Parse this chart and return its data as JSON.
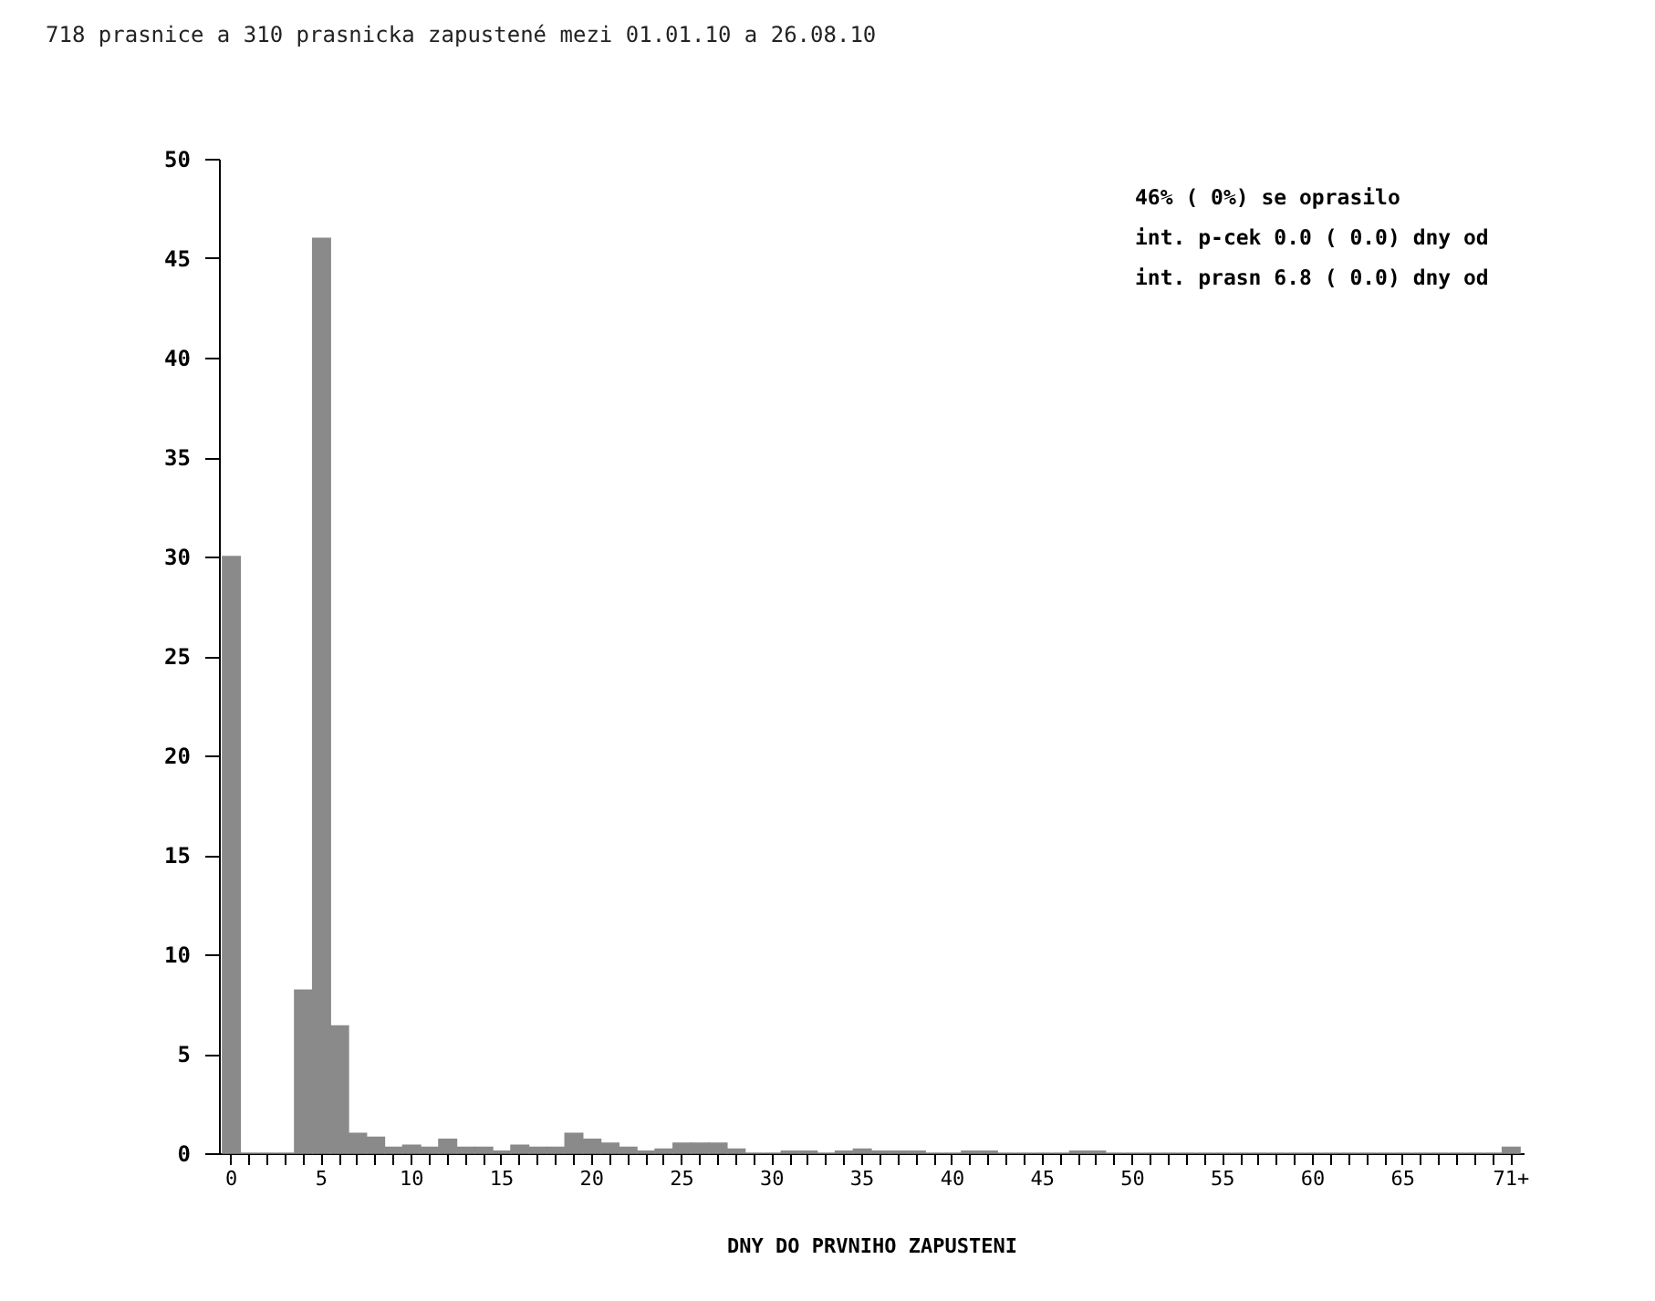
{
  "chart_data": {
    "type": "bar",
    "title": "718 prasnice a 310 prasnicka zapustené mezi 01.01.10  a 26.08.10",
    "xlabel": "DNY DO PRVNIHO ZAPUSTENI",
    "annotations": [
      "46%  (  0%) se oprasilo",
      "int. p-cek   0.0 ( 0.0) dny od",
      "int. prasn   6.8 ( 0.0) dny od"
    ],
    "categories": [
      "0",
      null,
      null,
      null,
      null,
      "5",
      null,
      null,
      null,
      null,
      "10",
      null,
      null,
      null,
      null,
      "15",
      null,
      null,
      null,
      null,
      "20",
      null,
      null,
      null,
      null,
      "25",
      null,
      null,
      null,
      null,
      "30",
      null,
      null,
      null,
      null,
      "35",
      null,
      null,
      null,
      null,
      "40",
      null,
      null,
      null,
      null,
      "45",
      null,
      null,
      null,
      null,
      "50",
      null,
      null,
      null,
      null,
      "55",
      null,
      null,
      null,
      null,
      "60",
      null,
      null,
      null,
      null,
      "65",
      null,
      null,
      null,
      null,
      null,
      "71+"
    ],
    "values": [
      30,
      0,
      0,
      0,
      8.2,
      46,
      6.4,
      1.0,
      0.8,
      0.3,
      0.4,
      0.3,
      0.7,
      0.3,
      0.3,
      0.1,
      0.4,
      0.3,
      0.3,
      1.0,
      0.7,
      0.5,
      0.3,
      0.1,
      0.2,
      0.5,
      0.5,
      0.5,
      0.2,
      0,
      0,
      0.1,
      0.1,
      0,
      0.1,
      0.2,
      0.1,
      0.1,
      0.1,
      0,
      0,
      0.1,
      0.1,
      0,
      0,
      0,
      0,
      0.1,
      0.1,
      0,
      0,
      0,
      0,
      0,
      0,
      0,
      0,
      0,
      0,
      0,
      0,
      0,
      0,
      0,
      0,
      0,
      0,
      0,
      0,
      0,
      0,
      0.3
    ],
    "color": "#8a8a8a",
    "ylim": [
      0,
      50
    ],
    "yticks": [
      0,
      5,
      10,
      15,
      20,
      25,
      30,
      35,
      40,
      45,
      50
    ],
    "grid": false
  }
}
